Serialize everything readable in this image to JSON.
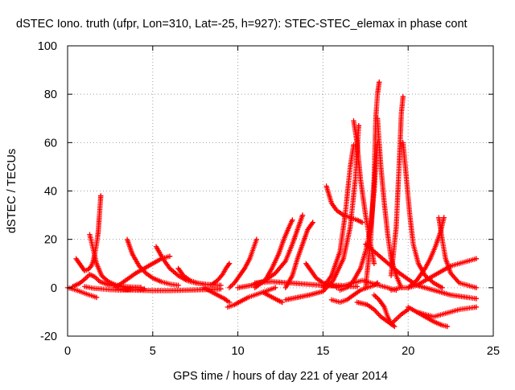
{
  "chart_data": {
    "type": "scatter",
    "title": "dSTEC Iono. truth (ufpr, Lon=310, Lat=-25, h=927): STEC-STEC_elemax in phase cont",
    "xlabel": "GPS time / hours of day 221 of year 2014",
    "ylabel": "dSTEC  / TECUs",
    "xlim": [
      0,
      25
    ],
    "ylim": [
      -20,
      100
    ],
    "x_ticks": [
      0,
      5,
      10,
      15,
      20,
      25
    ],
    "y_ticks": [
      -20,
      0,
      20,
      40,
      60,
      80,
      100
    ],
    "x_tick_labels": [
      "0",
      "5",
      "10",
      "15",
      "20",
      "25"
    ],
    "y_tick_labels": [
      "-20",
      "0",
      "20",
      "40",
      "60",
      "80",
      "100"
    ],
    "grid": true,
    "grid_style": "dotted",
    "marker": "+",
    "color": "#ff0000",
    "series": [
      {
        "x": [
          0.0,
          0.3,
          0.6,
          0.9,
          1.2,
          1.5,
          1.7
        ],
        "y": [
          0,
          -0.5,
          -1.2,
          -2,
          -2.8,
          -3.5,
          -4
        ]
      },
      {
        "x": [
          0.5,
          0.8,
          1.0,
          1.2,
          1.4,
          1.5,
          1.6,
          1.7,
          1.8,
          1.85,
          1.9,
          1.95
        ],
        "y": [
          12,
          9,
          7,
          7.5,
          9,
          11,
          14,
          18,
          23,
          28,
          33,
          38
        ]
      },
      {
        "x": [
          1.3,
          1.5,
          1.7,
          2.0,
          2.4,
          2.8,
          3.3,
          3.8,
          4.3
        ],
        "y": [
          22,
          16,
          10,
          5,
          2.5,
          1.2,
          0.5,
          0.3,
          0.2
        ]
      },
      {
        "x": [
          0.3,
          0.7,
          1.0,
          1.3,
          1.6,
          1.9,
          2.5,
          3.2,
          4.0
        ],
        "y": [
          0.5,
          1.8,
          3.5,
          5.5,
          4.5,
          2.5,
          1,
          0.5,
          0
        ]
      },
      {
        "x": [
          1.0,
          1.5,
          2.0,
          2.5,
          3.0,
          3.5,
          4.0,
          4.5
        ],
        "y": [
          0.5,
          -0.2,
          -0.5,
          -0.8,
          -1,
          -1,
          -0.8,
          -0.5
        ]
      },
      {
        "x": [
          3.5,
          3.8,
          4.2,
          4.6,
          5.0,
          5.5,
          6.0,
          6.5
        ],
        "y": [
          20,
          14,
          9,
          6,
          4,
          2.5,
          1.5,
          1
        ]
      },
      {
        "x": [
          2.8,
          3.2,
          3.6,
          4.0,
          4.5,
          5.0,
          5.5,
          6.0
        ],
        "y": [
          0,
          2,
          4,
          6,
          8,
          10,
          12,
          13
        ]
      },
      {
        "x": [
          5.2,
          5.6,
          6.0,
          6.5,
          7.0,
          7.5,
          8.0,
          8.5
        ],
        "y": [
          17,
          12,
          8,
          5,
          3,
          2,
          1.5,
          1.2
        ]
      },
      {
        "x": [
          3.0,
          4.0,
          5.0,
          6.0,
          7.0,
          8.0,
          9.0
        ],
        "y": [
          -0.5,
          -1,
          -1.2,
          -1.2,
          -1,
          -0.8,
          -0.5
        ]
      },
      {
        "x": [
          6.5,
          6.8,
          7.2,
          7.6,
          8.0,
          8.5,
          9.0
        ],
        "y": [
          8,
          5,
          3,
          2,
          1.5,
          1.2,
          1
        ]
      },
      {
        "x": [
          8.0,
          8.4,
          8.8,
          9.2,
          9.4,
          9.5
        ],
        "y": [
          0,
          -1.5,
          -3,
          -4.5,
          -5.5,
          -6
        ]
      },
      {
        "x": [
          8.5,
          8.8,
          9.1,
          9.3,
          9.5
        ],
        "y": [
          1.5,
          3,
          5.5,
          8,
          10
        ]
      },
      {
        "x": [
          9.4,
          9.8,
          10.2,
          10.6,
          11.0,
          11.4,
          11.8,
          12.2
        ],
        "y": [
          -8,
          -7,
          -5.5,
          -4,
          -3,
          -2,
          -1,
          0
        ]
      },
      {
        "x": [
          9.5,
          9.8,
          10.1,
          10.4,
          10.7,
          10.9,
          11.1
        ],
        "y": [
          0,
          2,
          5,
          8,
          12,
          16,
          20
        ]
      },
      {
        "x": [
          11.0,
          11.6,
          12.0,
          12.4,
          12.7,
          13.0,
          13.2
        ],
        "y": [
          0,
          3,
          8,
          14,
          20,
          25,
          28
        ]
      },
      {
        "x": [
          10.0,
          10.8,
          11.6,
          12.2,
          12.8,
          13.2,
          13.5,
          13.8
        ],
        "y": [
          0,
          1,
          3,
          6,
          11,
          18,
          24,
          30
        ]
      },
      {
        "x": [
          12.8,
          13.2,
          13.5,
          13.8,
          14.1,
          14.4
        ],
        "y": [
          0,
          5,
          12,
          18,
          24,
          27
        ]
      },
      {
        "x": [
          11.0,
          12.0,
          13.0,
          14.0,
          15.0,
          16.0
        ],
        "y": [
          2,
          2.5,
          2,
          1.5,
          1,
          0.5
        ]
      },
      {
        "x": [
          11.5,
          11.9,
          12.3,
          12.6
        ],
        "y": [
          -2,
          -3.5,
          -5,
          -6
        ]
      },
      {
        "x": [
          12.8,
          13.5,
          14.2,
          15.0,
          15.6,
          16.2,
          16.6,
          16.9,
          17.1
        ],
        "y": [
          -5,
          -4,
          -3,
          -1.5,
          3,
          12,
          25,
          45,
          67
        ]
      },
      {
        "x": [
          14.0,
          14.3,
          14.6,
          15.0,
          15.5,
          16.0,
          16.5,
          17.0
        ],
        "y": [
          10,
          7,
          4,
          2,
          1,
          1,
          0.5,
          0.5
        ]
      },
      {
        "x": [
          15.2,
          15.5,
          15.8,
          16.2,
          16.6,
          17.0,
          17.3
        ],
        "y": [
          42,
          35,
          32,
          30,
          29,
          28,
          27
        ]
      },
      {
        "x": [
          15.0,
          15.5,
          16.0,
          16.3,
          16.6,
          16.8
        ],
        "y": [
          0,
          5,
          15,
          30,
          50,
          59
        ]
      },
      {
        "x": [
          15.5,
          16.0,
          16.4,
          16.8,
          17.2,
          17.6,
          18.0,
          18.2
        ],
        "y": [
          -5,
          -6,
          -5,
          -3,
          -1,
          0,
          1,
          2
        ]
      },
      {
        "x": [
          16.8,
          17.0,
          17.2,
          17.5,
          17.8,
          18.0
        ],
        "y": [
          69,
          60,
          45,
          30,
          18,
          10
        ]
      },
      {
        "x": [
          16.0,
          16.4,
          16.8,
          17.2,
          17.5,
          17.8,
          18.0,
          18.2
        ],
        "y": [
          -1,
          0,
          3,
          8,
          15,
          25,
          40,
          60
        ]
      },
      {
        "x": [
          17.5,
          17.8,
          18.0,
          18.1,
          18.2,
          18.3
        ],
        "y": [
          0,
          20,
          45,
          70,
          80,
          85
        ]
      },
      {
        "x": [
          18.2,
          18.4,
          18.6,
          18.8,
          19.0,
          19.3,
          19.6
        ],
        "y": [
          70,
          50,
          35,
          22,
          12,
          5,
          0
        ]
      },
      {
        "x": [
          18.0,
          18.3,
          18.6,
          18.8,
          19.0,
          19.3,
          19.6,
          20.0
        ],
        "y": [
          -3,
          -5,
          -8,
          -12,
          -15,
          -13,
          -11,
          -9
        ]
      },
      {
        "x": [
          17.0,
          17.6,
          18.0,
          18.4,
          18.8,
          19.2
        ],
        "y": [
          -6,
          -7,
          -9,
          -12,
          -14,
          -16
        ]
      },
      {
        "x": [
          19.0,
          19.3,
          19.5,
          19.6,
          19.7
        ],
        "y": [
          5,
          25,
          55,
          72,
          79
        ]
      },
      {
        "x": [
          19.7,
          19.9,
          20.1,
          20.3,
          20.6,
          21.0,
          21.5,
          22.0
        ],
        "y": [
          60,
          45,
          30,
          18,
          10,
          5,
          2,
          0
        ]
      },
      {
        "x": [
          19.0,
          19.5,
          20.0,
          20.5,
          21.0,
          21.5,
          22.0,
          22.5,
          23.0,
          23.5,
          24.0
        ],
        "y": [
          -1,
          0,
          0,
          1,
          3,
          5,
          7,
          9,
          10,
          11,
          12
        ]
      },
      {
        "x": [
          20.0,
          20.5,
          21.0,
          21.3,
          21.6,
          21.9,
          22.1
        ],
        "y": [
          0,
          3,
          8,
          12,
          17,
          23,
          29
        ]
      },
      {
        "x": [
          21.8,
          22.0,
          22.2,
          22.5,
          23.0,
          23.5,
          24.0
        ],
        "y": [
          29,
          20,
          12,
          6,
          2,
          1,
          0
        ]
      },
      {
        "x": [
          17.5,
          18.5,
          19.5,
          20.5,
          21.5,
          22.5,
          23.5,
          24.0
        ],
        "y": [
          18,
          12,
          6,
          1,
          -1,
          -3,
          -4,
          -4.5
        ]
      },
      {
        "x": [
          20.5,
          21.0,
          21.5,
          22.0,
          22.5,
          23.0,
          23.5,
          24.0
        ],
        "y": [
          -10,
          -11,
          -12,
          -11,
          -10,
          -9,
          -8.5,
          -8
        ]
      },
      {
        "x": [
          20.0,
          20.5,
          21.0,
          21.5,
          22.0,
          22.3
        ],
        "y": [
          -8,
          -10,
          -12,
          -14,
          -15.5,
          -16
        ]
      },
      {
        "x": [
          15.8,
          16.3,
          16.8,
          17.3,
          17.8,
          18.3,
          18.8,
          19.3
        ],
        "y": [
          0,
          1,
          2,
          3,
          2,
          1,
          0,
          -1
        ]
      }
    ]
  }
}
